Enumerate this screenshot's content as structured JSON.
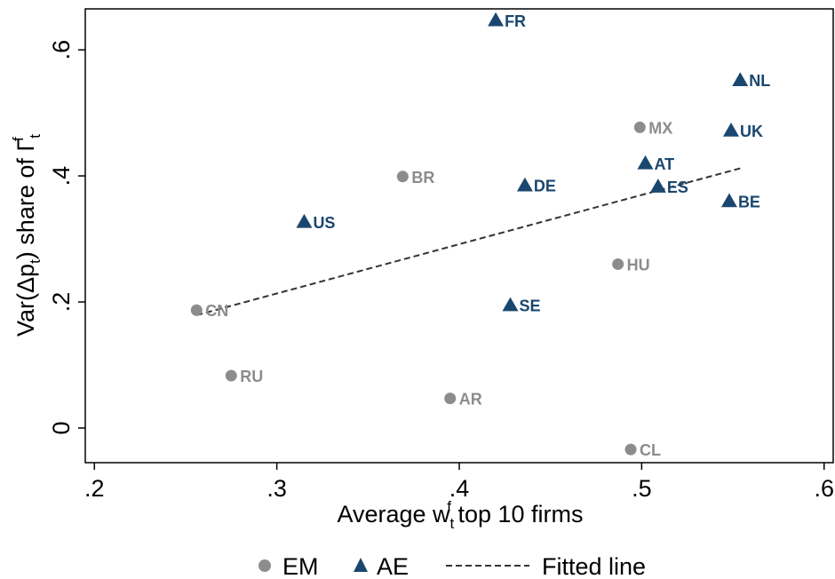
{
  "chart_data": {
    "type": "scatter",
    "xlabel": {
      "base": "Average w",
      "sub": "t",
      "sup": "f",
      "rest": " top 10 firms"
    },
    "ylabel": {
      "pre": "Var(Δp",
      "sub1": "t",
      "mid": ") share of Γ",
      "sub2": "t",
      "sup": "f"
    },
    "xlim": [
      0.195,
      0.605
    ],
    "ylim": [
      -0.055,
      0.665
    ],
    "xticks": [
      {
        "value": 0.2,
        "label": ".2"
      },
      {
        "value": 0.3,
        "label": ".3"
      },
      {
        "value": 0.4,
        "label": ".4"
      },
      {
        "value": 0.5,
        "label": ".5"
      },
      {
        "value": 0.6,
        "label": ".6"
      }
    ],
    "yticks": [
      {
        "value": 0,
        "label": "0"
      },
      {
        "value": 0.2,
        "label": ".2"
      },
      {
        "value": 0.4,
        "label": ".4"
      },
      {
        "value": 0.6,
        "label": ".6"
      }
    ],
    "series": [
      {
        "name": "EM",
        "marker": "circle",
        "color": "#8c8c8c",
        "points": [
          {
            "label": "CN",
            "x": 0.256,
            "y": 0.187
          },
          {
            "label": "RU",
            "x": 0.275,
            "y": 0.083
          },
          {
            "label": "BR",
            "x": 0.369,
            "y": 0.399
          },
          {
            "label": "AR",
            "x": 0.395,
            "y": 0.047
          },
          {
            "label": "HU",
            "x": 0.487,
            "y": 0.26
          },
          {
            "label": "MX",
            "x": 0.499,
            "y": 0.477
          },
          {
            "label": "CL",
            "x": 0.494,
            "y": -0.034
          }
        ]
      },
      {
        "name": "AE",
        "marker": "triangle",
        "color": "#1a476f",
        "points": [
          {
            "label": "US",
            "x": 0.315,
            "y": 0.327
          },
          {
            "label": "FR",
            "x": 0.42,
            "y": 0.647
          },
          {
            "label": "DE",
            "x": 0.436,
            "y": 0.385
          },
          {
            "label": "SE",
            "x": 0.428,
            "y": 0.195
          },
          {
            "label": "AT",
            "x": 0.502,
            "y": 0.42
          },
          {
            "label": "ES",
            "x": 0.509,
            "y": 0.383
          },
          {
            "label": "NL",
            "x": 0.554,
            "y": 0.552
          },
          {
            "label": "UK",
            "x": 0.549,
            "y": 0.472
          },
          {
            "label": "BE",
            "x": 0.548,
            "y": 0.36
          }
        ]
      }
    ],
    "fitted_line": {
      "name": "Fitted line",
      "color": "#333333",
      "x": [
        0.256,
        0.554
      ],
      "y": [
        0.179,
        0.412
      ]
    },
    "legend": {
      "placement": "bottom",
      "items": [
        {
          "label": "EM",
          "marker": "circle",
          "color": "#8c8c8c"
        },
        {
          "label": "AE",
          "marker": "triangle",
          "color": "#1a476f"
        },
        {
          "label": "Fitted line",
          "marker": "dash",
          "color": "#333333"
        }
      ]
    }
  }
}
